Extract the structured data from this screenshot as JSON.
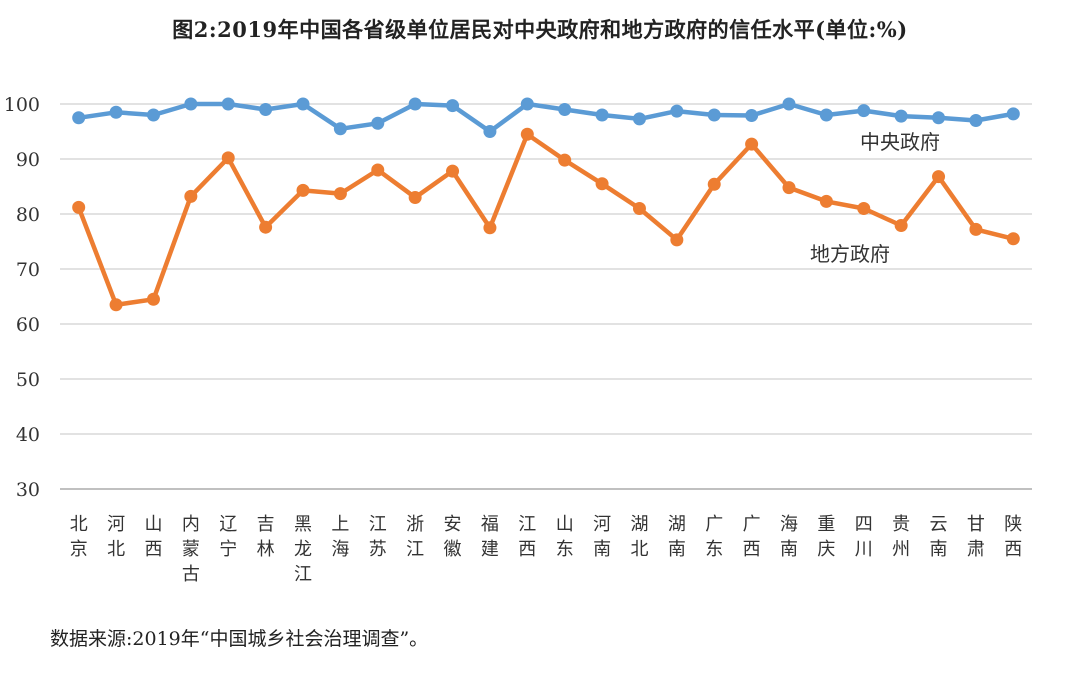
{
  "title": "图2:2019年中国各省级单位居民对中央政府和地方政府的信任水平(单位:%)",
  "source": "数据来源:2019年“中国城乡社会治理调查”。",
  "chart_data": {
    "type": "line",
    "title": "图2:2019年中国各省级单位居民对中央政府和地方政府的信任水平(单位:%)",
    "xlabel": "",
    "ylabel": "",
    "ylim": [
      30,
      100
    ],
    "yticks": [
      30,
      40,
      50,
      60,
      70,
      80,
      90,
      100
    ],
    "grid": true,
    "legend": "inline labels",
    "categories": [
      "北京",
      "河北",
      "山西",
      "内蒙古",
      "辽宁",
      "吉林",
      "黑龙江",
      "上海",
      "江苏",
      "浙江",
      "安徽",
      "福建",
      "江西",
      "山东",
      "河南",
      "湖北",
      "湖南",
      "广东",
      "广西",
      "海南",
      "重庆",
      "四川",
      "贵州",
      "云南",
      "甘肃",
      "陕西"
    ],
    "series": [
      {
        "name": "中央政府",
        "color": "#5b9bd5",
        "values": [
          97.5,
          98.5,
          98,
          100,
          100,
          99,
          100,
          95.5,
          96.5,
          100,
          99.7,
          95,
          100,
          99,
          98,
          97.3,
          98.7,
          98,
          97.9,
          100,
          98,
          98.8,
          97.8,
          97.5,
          97,
          98.2
        ]
      },
      {
        "name": "地方政府",
        "color": "#ed7d31",
        "values": [
          81.2,
          63.5,
          64.5,
          83.2,
          90.2,
          77.6,
          84.3,
          83.7,
          88,
          83,
          87.8,
          77.5,
          94.5,
          89.8,
          85.5,
          81,
          75.3,
          85.4,
          92.7,
          84.8,
          82.3,
          81,
          77.9,
          86.8,
          77.2,
          75.5
        ]
      }
    ]
  }
}
